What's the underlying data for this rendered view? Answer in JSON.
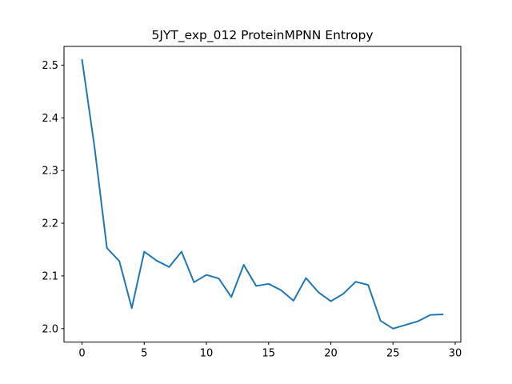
{
  "chart_data": {
    "type": "line",
    "title": "5JYT_exp_012 ProteinMPNN Entropy",
    "xlabel": "",
    "ylabel": "",
    "xlim": [
      -1.45,
      30.45
    ],
    "ylim": [
      1.9745,
      2.5355
    ],
    "xticks": [
      0,
      5,
      10,
      15,
      20,
      25,
      30
    ],
    "yticks": [
      2.0,
      2.1,
      2.2,
      2.3,
      2.4,
      2.5
    ],
    "ytick_labels": [
      "2.0",
      "2.1",
      "2.2",
      "2.3",
      "2.4",
      "2.5"
    ],
    "grid": false,
    "line_color": "#1f77b4",
    "series": [
      {
        "x": [
          0,
          1,
          2,
          3,
          4,
          5,
          6,
          7,
          8,
          9,
          10,
          11,
          12,
          13,
          14,
          15,
          16,
          17,
          18,
          19,
          20,
          21,
          22,
          23,
          24,
          25,
          26,
          27,
          28,
          29
        ],
        "values": [
          2.51,
          2.345,
          2.153,
          2.128,
          2.039,
          2.146,
          2.129,
          2.117,
          2.146,
          2.088,
          2.102,
          2.095,
          2.06,
          2.121,
          2.081,
          2.085,
          2.073,
          2.053,
          2.096,
          2.069,
          2.052,
          2.066,
          2.089,
          2.083,
          2.015,
          2.0,
          2.007,
          2.014,
          2.026,
          2.027
        ]
      }
    ]
  }
}
